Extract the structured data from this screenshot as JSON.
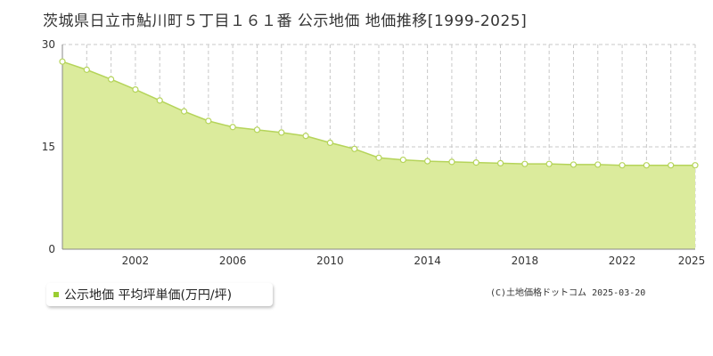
{
  "header": {
    "title": "茨城県日立市鮎川町５丁目１６１番 公示地価 地価推移[1999-2025]"
  },
  "legend": {
    "label": "公示地価 平均坪単価(万円/坪)"
  },
  "credit": "(C)土地価格ドットコム 2025-03-20",
  "colors": {
    "area_fill": "#dbeb9c",
    "line": "#b5d45a",
    "marker_fill": "#ffffff",
    "marker_stroke": "#b5d45a",
    "legend_marker": "#9acd32",
    "grid": "#c8c8c8"
  },
  "chart_data": {
    "type": "area",
    "title": "茨城県日立市鮎川町５丁目１６１番 公示地価 地価推移[1999-2025]",
    "xlabel": "",
    "ylabel": "",
    "x": [
      1999,
      2000,
      2001,
      2002,
      2003,
      2004,
      2005,
      2006,
      2007,
      2008,
      2009,
      2010,
      2011,
      2012,
      2013,
      2014,
      2015,
      2016,
      2017,
      2018,
      2019,
      2020,
      2021,
      2022,
      2023,
      2024,
      2025
    ],
    "series": [
      {
        "name": "公示地価 平均坪単価(万円/坪)",
        "values": [
          27.5,
          26.3,
          24.9,
          23.4,
          21.8,
          20.2,
          18.8,
          17.9,
          17.5,
          17.1,
          16.6,
          15.6,
          14.7,
          13.4,
          13.1,
          12.9,
          12.8,
          12.7,
          12.6,
          12.5,
          12.5,
          12.4,
          12.4,
          12.3,
          12.3,
          12.3,
          12.3
        ]
      }
    ],
    "xlim": [
      1999,
      2025
    ],
    "ylim": [
      0,
      30
    ],
    "yticks": [
      0,
      15,
      30
    ],
    "xticks": [
      2002,
      2006,
      2010,
      2014,
      2018,
      2022,
      2025
    ],
    "grid": true,
    "legend_position": "bottom-left"
  }
}
